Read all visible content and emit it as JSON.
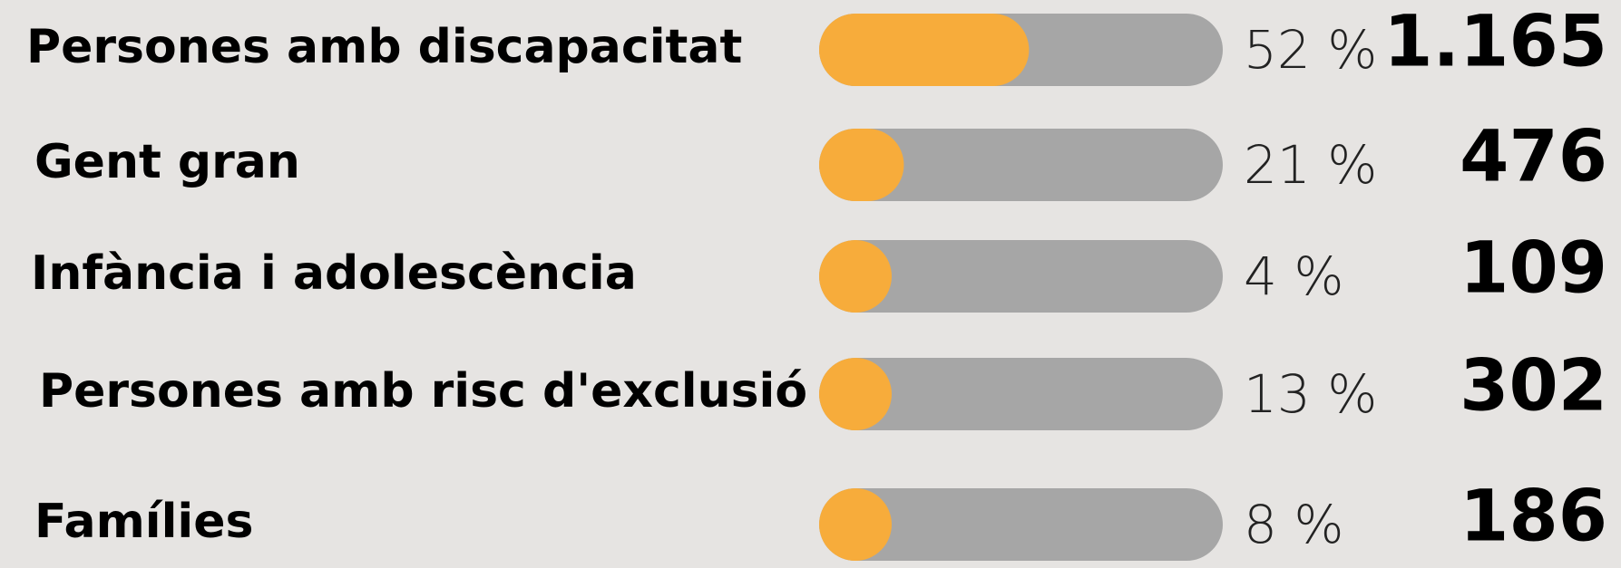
{
  "chart_data": {
    "type": "bar",
    "categories": [
      "Persones amb discapacitat",
      "Gent gran",
      "Infància i adolescència",
      "Persones amb risc d'exclusió",
      "Famílies"
    ],
    "values": [
      52,
      21,
      4,
      13,
      8
    ],
    "value_labels": [
      "52 %",
      "21 %",
      "4 %",
      "13 %",
      "8 %"
    ],
    "counts": [
      1165,
      476,
      109,
      302,
      186
    ],
    "count_labels": [
      "1.165",
      "476",
      "109",
      "302",
      "186"
    ],
    "xlim": [
      0,
      100
    ],
    "color": "#f7ac3b",
    "track_color": "#a6a6a6"
  }
}
